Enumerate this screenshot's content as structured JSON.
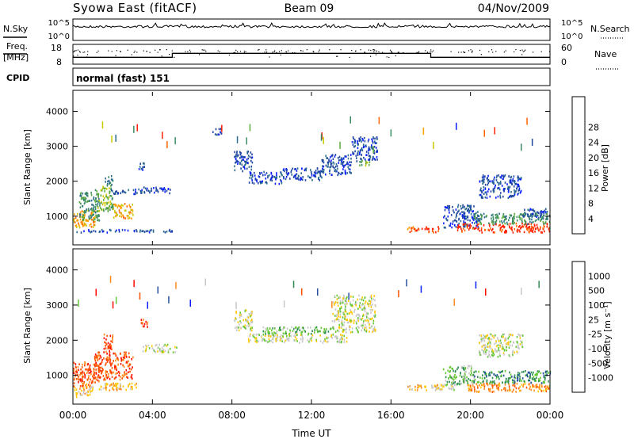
{
  "header": {
    "radar": "Syowa East (fitACF)",
    "beam": "Beam 09",
    "date": "04/Nov/2009"
  },
  "top_panel": {
    "nsky_label": "N.Sky",
    "nsearch_label": "N.Search",
    "left_ticks": [
      "10^5",
      "10^0"
    ],
    "right_ticks": [
      "10^5",
      "10^0"
    ],
    "freq_label": "Freq.",
    "freq_unit": "[MHz]",
    "freq_ticks": [
      "18",
      "8"
    ],
    "nave_label": "Nave",
    "nave_ticks": [
      "60",
      "0"
    ],
    "cpid_label": "CPID",
    "cpid_text": "normal (fast) 151",
    "freq_steps": [
      {
        "t0": 0,
        "t1": 5,
        "freq": 11.5
      },
      {
        "t0": 5,
        "t1": 18,
        "freq": 13.5
      },
      {
        "t0": 18,
        "t1": 24,
        "freq": 11.5
      }
    ]
  },
  "colors": {
    "power": [
      "#0a1eff",
      "#1e46a0",
      "#2d6e8c",
      "#3c8c64",
      "#5aaa3c",
      "#c8c800",
      "#ffa000",
      "#ff6400",
      "#ff1e00"
    ],
    "velocity": [
      "#ff0a00",
      "#ff5000",
      "#ff8c1e",
      "#ffc800",
      "#c8c8c8",
      "#64c832",
      "#2d8c50",
      "#2850a0",
      "#0a1eff"
    ]
  },
  "chart_data": [
    {
      "type": "heatmap",
      "parameter": "power",
      "ylabel": "Slant Range [km]",
      "ylim": [
        180,
        4600
      ],
      "yticks": [
        "1000",
        "2000",
        "3000",
        "4000"
      ],
      "xlim": [
        0,
        24
      ],
      "colorbar_label": "Power [dB]",
      "colorbar_ticks": [
        "4",
        "8",
        "12",
        "16",
        "20",
        "24",
        "28"
      ],
      "regions": [
        {
          "t0": 0.0,
          "t1": 1.1,
          "r0": 700,
          "r1": 1200,
          "level": 6
        },
        {
          "t0": 0.3,
          "t1": 1.3,
          "r0": 900,
          "r1": 1700,
          "level": 3
        },
        {
          "t0": 1.1,
          "t1": 2.0,
          "r0": 1150,
          "r1": 1900,
          "level": 4
        },
        {
          "t0": 1.6,
          "t1": 2.0,
          "r0": 1900,
          "r1": 2200,
          "level": 2
        },
        {
          "t0": 1.9,
          "t1": 3.6,
          "r0": 1650,
          "r1": 1800,
          "level": 1
        },
        {
          "t0": 2.0,
          "t1": 3.0,
          "r0": 950,
          "r1": 1400,
          "level": 6
        },
        {
          "t0": 3.4,
          "t1": 4.9,
          "r0": 1680,
          "r1": 1850,
          "level": 1
        },
        {
          "t0": 0.0,
          "t1": 5.0,
          "r0": 560,
          "r1": 640,
          "level": 1
        },
        {
          "t0": 3.3,
          "t1": 3.6,
          "r0": 2350,
          "r1": 2650,
          "level": 1
        },
        {
          "t0": 7.0,
          "t1": 7.5,
          "r0": 3350,
          "r1": 3550,
          "level": 1
        },
        {
          "t0": 8.1,
          "t1": 9.0,
          "r0": 2300,
          "r1": 2900,
          "level": 1
        },
        {
          "t0": 8.8,
          "t1": 10.5,
          "r0": 1950,
          "r1": 2300,
          "level": 1
        },
        {
          "t0": 10.5,
          "t1": 12.5,
          "r0": 2050,
          "r1": 2400,
          "level": 1
        },
        {
          "t0": 12.5,
          "t1": 14.0,
          "r0": 2200,
          "r1": 2800,
          "level": 1
        },
        {
          "t0": 14.0,
          "t1": 15.3,
          "r0": 2600,
          "r1": 3300,
          "level": 1
        },
        {
          "t0": 14.4,
          "t1": 14.9,
          "r0": 2450,
          "r1": 2650,
          "level": 4
        },
        {
          "t0": 16.8,
          "t1": 17.6,
          "r0": 560,
          "r1": 720,
          "level": 7
        },
        {
          "t0": 17.6,
          "t1": 18.4,
          "r0": 560,
          "r1": 720,
          "level": 8
        },
        {
          "t0": 18.6,
          "t1": 20.4,
          "r0": 700,
          "r1": 1350,
          "level": 1
        },
        {
          "t0": 19.3,
          "t1": 24.0,
          "r0": 560,
          "r1": 820,
          "level": 8
        },
        {
          "t0": 20.0,
          "t1": 24.0,
          "r0": 800,
          "r1": 1100,
          "level": 3
        },
        {
          "t0": 22.5,
          "t1": 24.0,
          "r0": 1000,
          "r1": 1250,
          "level": 1
        },
        {
          "t0": 20.4,
          "t1": 22.6,
          "r0": 1550,
          "r1": 2200,
          "level": 1
        }
      ]
    },
    {
      "type": "heatmap",
      "parameter": "velocity",
      "ylabel": "Slant Range [km]",
      "xlabel": "Time UT",
      "ylim": [
        180,
        4600
      ],
      "yticks": [
        "1000",
        "2000",
        "3000",
        "4000"
      ],
      "xlim": [
        0,
        24
      ],
      "xticks": [
        "00:00",
        "04:00",
        "08:00",
        "12:00",
        "16:00",
        "20:00",
        "00:00"
      ],
      "colorbar_label": "Velocity [m s⁻¹]",
      "colorbar_ticks": [
        "1000",
        "500",
        "100",
        "25",
        "-25",
        "-100",
        "-500",
        "-1000"
      ],
      "regions": [
        {
          "t0": 0.0,
          "t1": 1.3,
          "r0": 700,
          "r1": 1400,
          "level": 1
        },
        {
          "t0": 0.0,
          "t1": 1.0,
          "r0": 400,
          "r1": 700,
          "level": 3
        },
        {
          "t0": 1.0,
          "t1": 3.0,
          "r0": 900,
          "r1": 1700,
          "level": 1
        },
        {
          "t0": 0.4,
          "t1": 3.2,
          "r0": 600,
          "r1": 800,
          "level": 3
        },
        {
          "t0": 1.5,
          "t1": 2.0,
          "r0": 1700,
          "r1": 2200,
          "level": 1
        },
        {
          "t0": 3.4,
          "t1": 3.8,
          "r0": 2400,
          "r1": 2650,
          "level": 1
        },
        {
          "t0": 3.5,
          "t1": 5.2,
          "r0": 1680,
          "r1": 1900,
          "level": 4
        },
        {
          "t0": 8.1,
          "t1": 9.0,
          "r0": 2300,
          "r1": 2900,
          "level": 4
        },
        {
          "t0": 8.8,
          "t1": 13.8,
          "r0": 1950,
          "r1": 2200,
          "level": 4
        },
        {
          "t0": 9.5,
          "t1": 13.0,
          "r0": 2200,
          "r1": 2400,
          "level": 5
        },
        {
          "t0": 13.0,
          "t1": 15.2,
          "r0": 2250,
          "r1": 3300,
          "level": 4
        },
        {
          "t0": 16.8,
          "t1": 18.6,
          "r0": 600,
          "r1": 760,
          "level": 3
        },
        {
          "t0": 18.0,
          "t1": 19.2,
          "r0": 600,
          "r1": 760,
          "level": 4
        },
        {
          "t0": 18.6,
          "t1": 20.2,
          "r0": 760,
          "r1": 1300,
          "level": 5
        },
        {
          "t0": 19.8,
          "t1": 24.0,
          "r0": 550,
          "r1": 800,
          "level": 2
        },
        {
          "t0": 20.0,
          "t1": 24.0,
          "r0": 800,
          "r1": 1150,
          "level": 6
        },
        {
          "t0": 20.4,
          "t1": 22.6,
          "r0": 1550,
          "r1": 2200,
          "level": 4
        }
      ]
    }
  ]
}
